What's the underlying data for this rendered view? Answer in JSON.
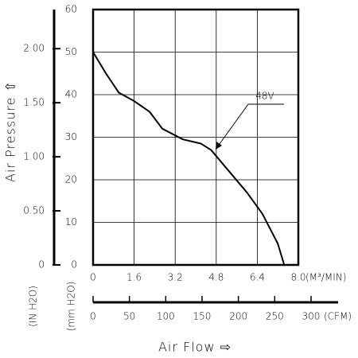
{
  "chart_data": {
    "type": "line",
    "y_label": "Air Pressure ⇧",
    "x_label": "Air Flow ⇨",
    "x_unit": "(M³/MIN)",
    "y_unit": "(mm H2O)",
    "y2_unit": "(IN H2O)",
    "x2_unit": "(CFM)",
    "x": [
      0,
      0.5,
      1,
      1.6,
      2.2,
      2.7,
      3.5,
      4.2,
      4.6,
      5.3,
      6,
      6.6,
      7.2,
      7.45
    ],
    "series": [
      {
        "name": "48V",
        "color": "#000000",
        "values": [
          50,
          45,
          40.5,
          38.5,
          36,
          32,
          29.5,
          28.5,
          27,
          22,
          17,
          12,
          5,
          0
        ]
      }
    ],
    "xlim": [
      0,
      8
    ],
    "xticks": [
      0,
      1.6,
      3.2,
      4.8,
      6.4,
      {
        "value": 8,
        "label": "8.0"
      }
    ],
    "ylim": [
      0,
      60
    ],
    "yticks": [
      0,
      10,
      20,
      30,
      40,
      50,
      60
    ],
    "y2lim": [
      0,
      2.362
    ],
    "y2ticks": [
      0,
      {
        "value": 0.5,
        "label": "0.50"
      },
      {
        "value": 1,
        "label": "1.00"
      },
      {
        "value": 1.5,
        "label": "1.50"
      },
      {
        "value": 2,
        "label": "2.00"
      }
    ],
    "x2lim": [
      0,
      282.5
    ],
    "x2ticks": [
      0,
      50,
      100,
      150,
      200,
      250,
      300
    ],
    "grid": true
  }
}
